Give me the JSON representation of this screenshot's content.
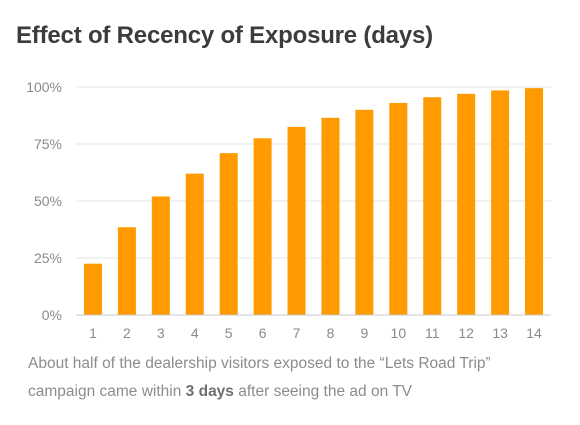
{
  "title": "Effect of Recency of Exposure (days)",
  "caption": {
    "line1": "About half of the dealership visitors exposed to the “Lets Road Trip”",
    "line2_pre": "campaign came within ",
    "line2_bold": "3 days",
    "line2_post": " after seeing the ad on TV"
  },
  "chart_data": {
    "type": "bar",
    "title": "Effect of Recency of Exposure (days)",
    "xlabel": "",
    "ylabel": "",
    "categories": [
      "1",
      "2",
      "3",
      "4",
      "5",
      "6",
      "7",
      "8",
      "9",
      "10",
      "11",
      "12",
      "13",
      "14"
    ],
    "values": [
      22.5,
      38.5,
      52,
      62,
      71,
      77.5,
      82.5,
      86.5,
      90,
      93,
      95.5,
      97,
      98.5,
      99.5
    ],
    "ylim": [
      0,
      100
    ],
    "yticks": [
      0,
      25,
      50,
      75,
      100
    ],
    "ytick_labels": [
      "0%",
      "25%",
      "50%",
      "75%",
      "100%"
    ],
    "grid": true,
    "legend": "none",
    "bar_color": "#ff9a00",
    "grid_color": "#e6e6e6",
    "axis_color": "#c8c8c8",
    "tick_label_color": "#8a8a8a"
  }
}
